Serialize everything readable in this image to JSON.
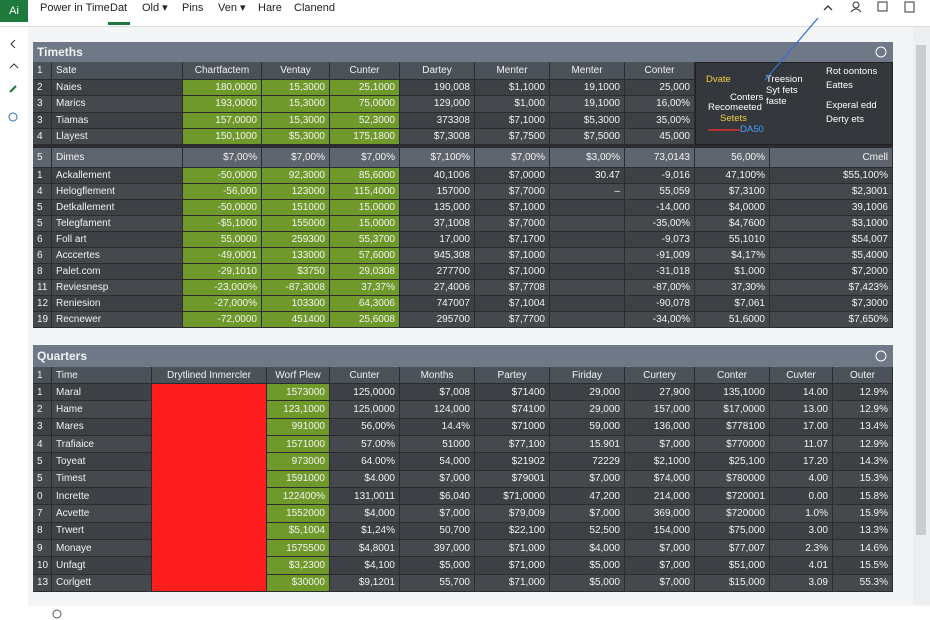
{
  "menu": {
    "logo": "Ai",
    "items": [
      "Power in Time",
      "Dat",
      "Old ▾",
      "Pins",
      "Ven ▾",
      "Hare",
      "Clanend"
    ]
  },
  "panel1": {
    "title": "Timeths",
    "columns": [
      "1",
      "Sate",
      "Chartfactem",
      "Ventay",
      "Cunter",
      "Dartey",
      "Menter",
      "Menter",
      "Conter"
    ],
    "top_rows": [
      [
        "2",
        "Naies",
        "180,0000",
        "15,3000",
        "25,1000",
        "190,008",
        "$1,1000",
        "19,1000",
        "25,000"
      ],
      [
        "3",
        "Marics",
        "193,0000",
        "15,3000",
        "75,0000",
        "129,000",
        "$1,000",
        "19,1000",
        "16,00%"
      ],
      [
        "3",
        "Tiamas",
        "157,0000",
        "15,3000",
        "52,3000",
        "373308",
        "$7,1000",
        "$5,3000",
        "35,00%"
      ],
      [
        "4",
        "Llayest",
        "150,1000",
        "$5,3000",
        "175,1800",
        "$7,3008",
        "$7,7500",
        "$7,5000",
        "45,000"
      ]
    ],
    "legend": [
      "Dvate",
      "Treesion",
      "Syt fets",
      "Conters",
      "Recomeeted",
      "faste",
      "Setets",
      "DA50",
      "Rot oontons",
      "Eattes",
      "Experal edd",
      "Derty ets"
    ],
    "section_row": [
      "5",
      "Dimes",
      "$7,00%",
      "$7,00%",
      "$7,00%",
      "$7,100%",
      "$7,00%",
      "$3,00%",
      "73,0143",
      "56,00%",
      "Cmell"
    ],
    "rows": [
      [
        "1",
        "Ackallement",
        "-50,0000",
        "92,3000",
        "85,6000",
        "40,1006",
        "$7,0000",
        "30.47",
        "-9,016",
        "47,100%",
        "$55,100%"
      ],
      [
        "4",
        "Helogflement",
        "-56,000",
        "123000",
        "115,4000",
        "157000",
        "$7,7000",
        "–",
        "55,059",
        "$7,3100",
        "$2,3001"
      ],
      [
        "5",
        "Detkallement",
        "-50,0000",
        "151000",
        "15,0000",
        "135,000",
        "$7,1000",
        null,
        "-14,000",
        "$4,0000",
        "39,1006"
      ],
      [
        "5",
        "Telegfament",
        "-$5,1000",
        "155000",
        "15,0000",
        "37,1008",
        "$7,7000",
        null,
        "-35,00%",
        "$4,7600",
        "$3,1000"
      ],
      [
        "6",
        "Foll art",
        "55,0000",
        "259300",
        "55,3700",
        "17,000",
        "$7,1700",
        null,
        "-9,073",
        "55,1010",
        "$54,007"
      ],
      [
        "6",
        "Acccertes",
        "-49,0001",
        "133000",
        "57,6000",
        "945,308",
        "$7,1000",
        null,
        "-91,009",
        "$4,17%",
        "$5,4000"
      ],
      [
        "8",
        "Palet.com",
        "-29,1010",
        "$3750",
        "29,0308",
        "277700",
        "$7,1000",
        null,
        "-31,018",
        "$1,000",
        "$7,2000"
      ],
      [
        "11",
        "Reviesnesp",
        "-23,000%",
        "-87,3008",
        "37,37%",
        "27,4006",
        "$7,7708",
        null,
        "-87,00%",
        "37,30%",
        "$7,423%"
      ],
      [
        "12",
        "Reniesion",
        "-27,000%",
        "103300",
        "64,3006",
        "747007",
        "$7,1004",
        null,
        "-90,078",
        "$7,061",
        "$7,3000"
      ],
      [
        "19",
        "Recnewer",
        "-72,0000",
        "451400",
        "25,6008",
        "295700",
        "$7,7700",
        null,
        "-34,00%",
        "51,6000",
        "$7,650%"
      ]
    ]
  },
  "panel2": {
    "title": "Quarters",
    "columns": [
      "1",
      "Time",
      "Drytlined Inmercler",
      "Worf Plew",
      "Cunter",
      "Months",
      "Partey",
      "Firiday",
      "Curtery",
      "Conter",
      "Cuvter",
      "Outer"
    ],
    "rows": [
      [
        "1",
        "Maral",
        "1573000",
        "125,0000",
        "$7,008",
        "$71400",
        "29,000",
        "27,900",
        "135,1000",
        "14.00",
        "12.9%"
      ],
      [
        "2",
        "Hame",
        "123,1000",
        "125,0000",
        "124,000",
        "$74100",
        "29,000",
        "157,000",
        "$17,0000",
        "13.00",
        "12.9%"
      ],
      [
        "3",
        "Mares",
        "991000",
        "56,00%",
        "14.4%",
        "$71000",
        "59,000",
        "136,000",
        "$778100",
        "17.00",
        "13.4%"
      ],
      [
        "4",
        "Trafiaice",
        "1571000",
        "57.00%",
        "51000",
        "$77,100",
        "15.901",
        "$7,000",
        "$770000",
        "11.07",
        "12.9%"
      ],
      [
        "5",
        "Toyeat",
        "973000",
        "64.00%",
        "54,000",
        "$21902",
        "72229",
        "$2,1000",
        "$25,100",
        "17.20",
        "14.3%"
      ],
      [
        "5",
        "Timest",
        "1591000",
        "$4.000",
        "$7,000",
        "$79001",
        "$7,000",
        "$74,000",
        "$780000",
        "4.00",
        "15.3%"
      ],
      [
        "0",
        "Incrette",
        "122400%",
        "131,0011",
        "$6,040",
        "$71,0000",
        "47,200",
        "214,000",
        "$720001",
        "0.00",
        "15.8%"
      ],
      [
        "7",
        "Acvette",
        "1552000",
        "$4,000",
        "$7,000",
        "$79,009",
        "$7,000",
        "369,000",
        "$720000",
        "1.0%",
        "15.9%"
      ],
      [
        "8",
        "Trwert",
        "$5,1004",
        "$1,24%",
        "50,700",
        "$22,100",
        "52,500",
        "154,000",
        "$75,000",
        "3.00",
        "13.3%"
      ],
      [
        "9",
        "Monaye",
        "1575500",
        "$4,8001",
        "397,000",
        "$71,000",
        "$4,000",
        "$7,000",
        "$77,007",
        "2.3%",
        "14.6%"
      ],
      [
        "10",
        "Unfagt",
        "$3,2300",
        "$4,100",
        "$5,000",
        "$71,000",
        "$5,000",
        "$7,000",
        "$51,000",
        "4.01",
        "15.5%"
      ],
      [
        "13",
        "Corlgett",
        "$30000",
        "$9,1201",
        "55,700",
        "$71,000",
        "$5,000",
        "$7,000",
        "$15,000",
        "3.09",
        "55.3%"
      ]
    ]
  }
}
